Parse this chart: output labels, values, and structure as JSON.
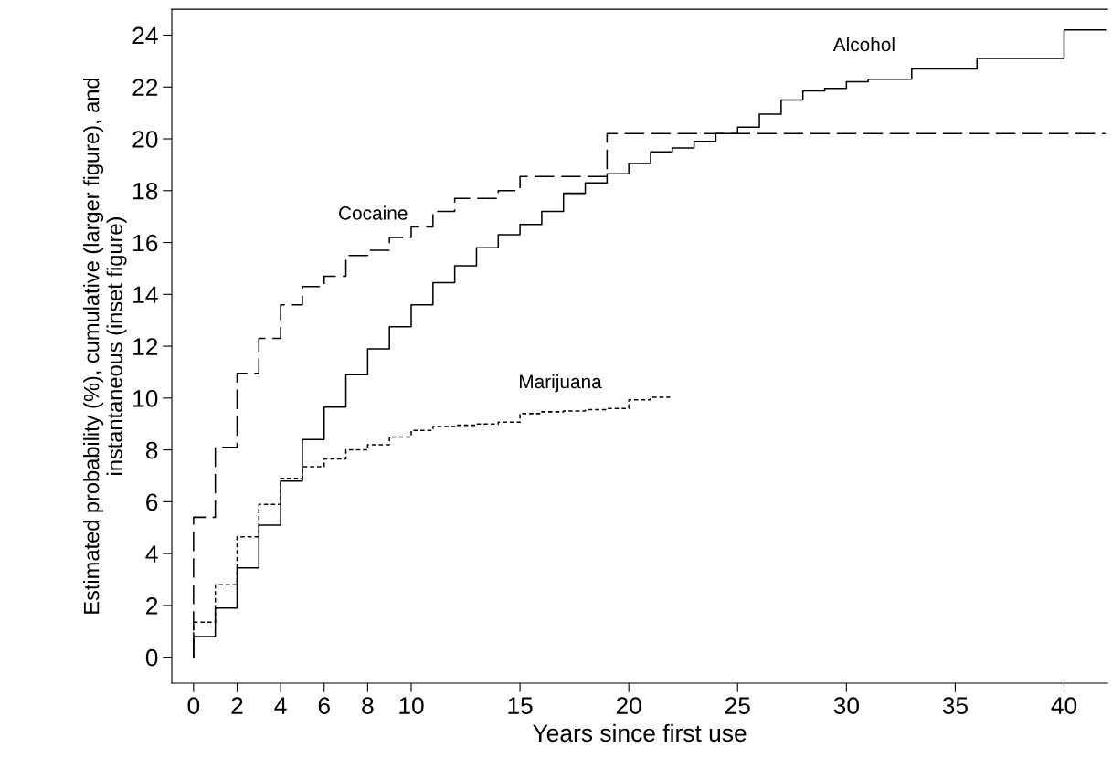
{
  "chart_data": {
    "type": "step",
    "xlabel": "Years since first use",
    "ylabel": "Estimated probability (%), cumulative (larger figure), and\ninstantaneous (inset figure)",
    "xlim": [
      -1,
      42
    ],
    "xticks": [
      0,
      2,
      4,
      6,
      8,
      10,
      15,
      20,
      25,
      30,
      35,
      40
    ],
    "ylim": [
      -1,
      25
    ],
    "yticks": [
      0,
      2,
      4,
      6,
      8,
      10,
      12,
      14,
      16,
      18,
      20,
      22,
      24
    ],
    "grid": false,
    "marker": "none",
    "series": [
      {
        "name": "Alcohol",
        "color": "#000000",
        "line_style": "solid",
        "x": [
          0,
          0,
          1,
          2,
          3,
          4,
          5,
          6,
          7,
          8,
          9,
          10,
          11,
          12,
          13,
          14,
          15,
          16,
          17,
          18,
          19,
          20,
          21,
          22,
          23,
          24,
          25,
          26,
          27,
          28,
          29,
          30,
          31,
          33,
          36,
          40,
          41.9
        ],
        "values": [
          0,
          0.8,
          1.9,
          3.45,
          5.1,
          6.8,
          8.4,
          9.65,
          10.9,
          11.9,
          12.75,
          13.6,
          14.45,
          15.1,
          15.8,
          16.3,
          16.7,
          17.2,
          17.9,
          18.3,
          18.65,
          19.05,
          19.5,
          19.65,
          19.9,
          20.2,
          20.45,
          20.95,
          21.5,
          21.85,
          21.95,
          22.2,
          22.3,
          22.7,
          23.1,
          24.2,
          24.2
        ]
      },
      {
        "name": "Cocaine",
        "color": "#000000",
        "line_style": "dashed",
        "x": [
          0,
          0,
          1,
          2,
          3,
          4,
          5,
          6,
          7,
          8,
          9,
          10,
          11,
          12,
          14,
          15,
          19,
          41.9
        ],
        "values": [
          0,
          5.4,
          8.1,
          10.95,
          12.3,
          13.6,
          14.3,
          14.7,
          15.5,
          15.7,
          16.2,
          16.6,
          17.2,
          17.7,
          18.0,
          18.55,
          20.2,
          20.2
        ]
      },
      {
        "name": "Marijuana",
        "color": "#000000",
        "line_style": "dotted",
        "x": [
          0,
          0,
          1,
          2,
          3,
          4,
          5,
          6,
          7,
          8,
          9,
          10,
          11,
          12,
          13,
          14,
          15,
          16,
          17,
          18,
          19,
          20,
          21,
          21.9
        ],
        "values": [
          0,
          1.35,
          2.8,
          4.65,
          5.9,
          6.9,
          7.35,
          7.65,
          8.0,
          8.2,
          8.5,
          8.75,
          8.9,
          8.95,
          9.0,
          9.07,
          9.4,
          9.47,
          9.5,
          9.55,
          9.6,
          9.93,
          10.03,
          10.03
        ]
      }
    ]
  }
}
